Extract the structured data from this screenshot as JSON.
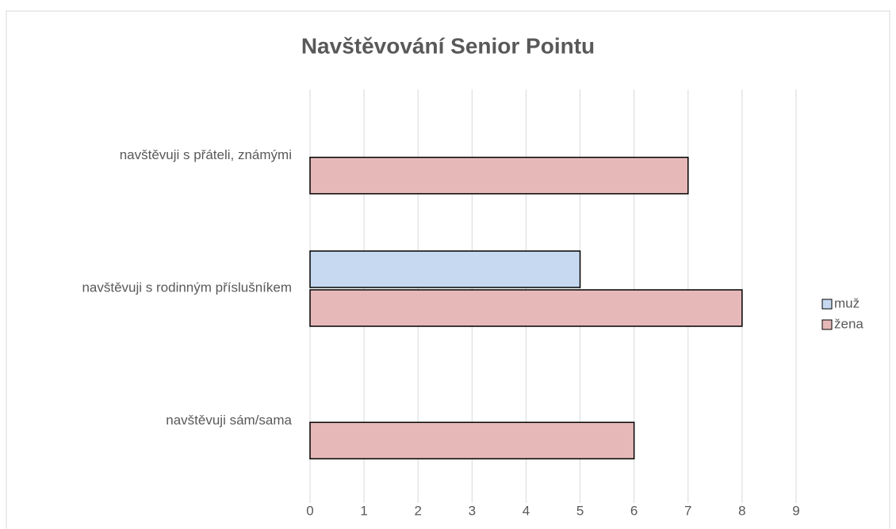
{
  "chart_data": {
    "type": "hbar",
    "title": "Navštěvování Senior Pointu",
    "categories": [
      "navštěvuji s přáteli, známými",
      "navštěvuji s rodinným příslušníkem",
      "navštěvuji sám/sama"
    ],
    "series": [
      {
        "name": "muž",
        "color": "#c6d9f1",
        "values": [
          0,
          5,
          0
        ]
      },
      {
        "name": "žena",
        "color": "#e6b9b8",
        "values": [
          7,
          8,
          6
        ]
      }
    ],
    "xlim": [
      0,
      9
    ],
    "xticks": [
      0,
      1,
      2,
      3,
      4,
      5,
      6,
      7,
      8,
      9
    ],
    "grid": true,
    "legend": "right"
  }
}
